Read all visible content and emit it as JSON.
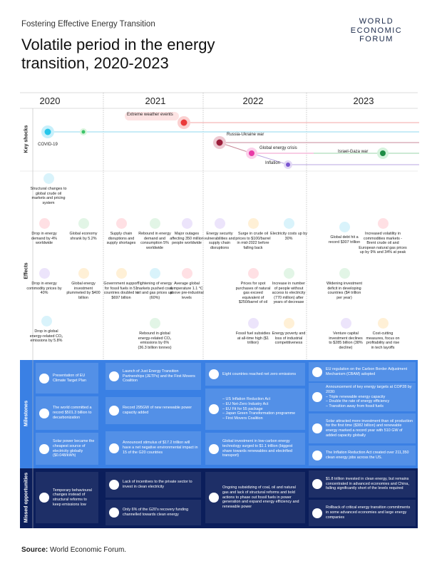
{
  "header": {
    "subtitle": "Fostering Effective Energy Transition",
    "title": "Volatile period in the energy transition, 2020-2023",
    "logo": [
      "WORLD",
      "ECONOMIC",
      "FORUM"
    ]
  },
  "years": [
    "2020",
    "2021",
    "2022",
    "2023"
  ],
  "row_labels": [
    "Key shocks",
    "Effects",
    "Milestones",
    "Missed opportunities"
  ],
  "shocks": [
    "Extreme weather events",
    "COVID-19",
    "Russia-Ukraine war",
    "Global energy crisis",
    "Inflation",
    "Israel-Gaza war"
  ],
  "effects": [
    "Structural changes to global crude oil markets and pricing system",
    "Drop in energy demand by 4% worldwide",
    "Global economy shrank by 5.2%",
    "Drop in energy commodity prices by 40%",
    "Global energy investment plummeted by $400 billion",
    "Drop in global energy-related CO₂ emissions by 5.8%",
    "Supply chain disruptions and supply shortages",
    "Rebound in energy demand and consumption 5% worldwide",
    "Major outages affecting 350 million people worldwide",
    "Government support for fossil fuels in 51 countries doubled to $697 billion",
    "Tightening of energy markets pushed coal, oil and gas prices up (60%)",
    "Average global temperature 1.1 °C above pre-industrial levels",
    "Rebound in global energy-related CO₂ emissions by 6% (36.3 billion tonnes)",
    "Energy security vulnerabilities and supply chain disruptions",
    "Surge in crude oil prices to $100/barrel in mid-2022 before falling back",
    "Electricity costs up by 30%",
    "Prices for spot purchases of natural gas exceed equivalent of $250/barrel of oil",
    "Increase in number of people without access to electricity (770 million) after years of decrease",
    "Fossil fuel subsidies at all-time high ($1 trillion)",
    "Energy poverty and loss of industrial competitiveness",
    "Global debt hit a record $307 trillion",
    "Increased volatility in commodities markets - Brent crude oil and European natural gas prices up by 9% and 34% at peak",
    "Widening investment deficit in developing countries ($4 trillion per year)",
    "Venture capital investment declines to $285 billion (38% decline)",
    "Cost-cutting measures, focus on profitability and rise in tech layoffs"
  ],
  "milestones": [
    {
      "text": "Presentation of EU Climate Target Plan"
    },
    {
      "text": "The world committed a record $501.3 billion to decarbonization"
    },
    {
      "text": "Solar power became the cheapest source of electricity globally ($0.048/kWh)"
    },
    {
      "text": "Launch of Just Energy Transition Partnerships (JETPs) and the First Movers Coalition"
    },
    {
      "text": "Record 295GW of new renewable power capacity added"
    },
    {
      "text": "Announced stimulus of $17.2 trillion will have a net negative environmental impact in 15 of the G20 countries"
    },
    {
      "text": "Eight countries reached net zero emissions"
    },
    {
      "items": [
        "– US Inflation Reduction Act",
        "– EU Net-Zero Industry Act",
        "– EU Fit for 55 package",
        "– Japan Green Transformation programme",
        "– First Movers Coalition"
      ]
    },
    {
      "text": "Global investment in low-carbon energy technology surged to $1.1 trillion (biggest share towards renewables and electrified transport)"
    },
    {
      "text": "EU regulation on the Carbon Border Adjustment Mechanism (CBAM) adopted"
    },
    {
      "text": "Announcement of key energy targets at COP28 by 2030:",
      "items": [
        "– Triple renewable energy capacity",
        "– Double the rate of energy efficiency",
        "– Transition away from fossil fuels"
      ]
    },
    {
      "text": "Solar attracted more investment than oil production for the first time ($382 billion) and renewable energy marked a record year with 510 GW of added capacity globally"
    },
    {
      "text": "The Inflation Reduction Act created over 211,350 clean energy jobs across the US."
    }
  ],
  "missed": [
    "Temporary behavioural changes instead of structural reforms to keep emissions low",
    "Lack of incentives to the private sector to invest in clean electricity",
    "Only 6% of the G20's recovery funding channelled towards clean energy",
    "Ongoing subsidizing of coal, oil and natural gas and lack of structural reforms and bold actions to phase out fossil fuels in power generation and expand energy efficiency and renewable power",
    "$1.8 trillion invested in clean energy, but remains concentrated in advanced economies and China, falling significantly short of the levels required",
    "Rollback of critical energy transition commitments in some advanced economies and large energy companies"
  ],
  "source": {
    "label": "Source:",
    "text": "World Economic Forum."
  }
}
